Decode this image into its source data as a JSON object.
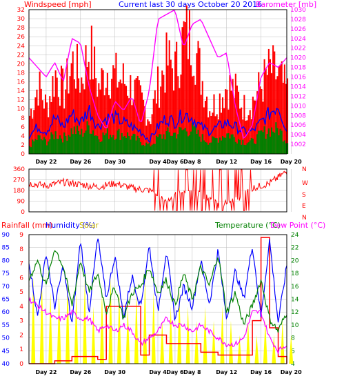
{
  "colors": {
    "wind": "#ff0000",
    "gust": "#ff0000",
    "avg": "#0000ff",
    "low": "#008000",
    "barometer": "#ff00ff",
    "direction": "#ff0000",
    "rain": "#ff0000",
    "humidity": "#0000ff",
    "solar": "#ffff00",
    "temperature": "#008000",
    "dewpoint": "#ff00ff",
    "grid": "#bbbbbb"
  },
  "header": {
    "left": "Windspeed [mph]",
    "center": "Current last 30 days October 20 2016",
    "right": "Barometer [mb]"
  },
  "direction_labels": [
    "N",
    "W",
    "S",
    "E",
    "N"
  ],
  "lower_header": {
    "rain": "Rainfall (mm)",
    "humidity": "Humidity (%)",
    "solar": "Solar",
    "temperature": "Temperature (°C)",
    "dewpoint": "Dew Point (°C)"
  },
  "x_ticks": [
    "Day 22",
    "Day 26",
    "Day 30",
    "Day 4",
    "Day 6",
    "Day 8",
    "Day 12",
    "Day 16",
    "Day 20"
  ],
  "chart_data": [
    {
      "type": "bar",
      "title": "Current last 30 days October 20 2016",
      "ylabel": "Windspeed [mph]",
      "y2label": "Barometer [mb]",
      "ylim": [
        0,
        32
      ],
      "y2lim": [
        1000,
        1030
      ],
      "yticks": [
        0,
        2,
        4,
        6,
        8,
        10,
        12,
        14,
        16,
        18,
        20,
        22,
        24,
        26,
        28,
        30,
        32
      ],
      "y2ticks": [
        1002,
        1004,
        1006,
        1008,
        1010,
        1012,
        1014,
        1016,
        1018,
        1020,
        1022,
        1024,
        1026,
        1028,
        1030
      ],
      "series": [
        {
          "name": "Windspeed gust",
          "x_day": [
            0,
            1,
            2,
            3,
            4,
            5,
            6,
            7,
            8,
            9,
            10,
            11,
            12,
            13,
            14,
            15,
            16,
            17,
            18,
            19,
            20,
            21,
            22,
            23,
            24,
            25,
            26,
            27,
            28,
            29,
            30
          ],
          "values": [
            10,
            18,
            12,
            21,
            16,
            24,
            19,
            28,
            17,
            22,
            20,
            19,
            17,
            14,
            9,
            18,
            24,
            22,
            31,
            30,
            20,
            12,
            14,
            18,
            16,
            12,
            14,
            18,
            22,
            20,
            16
          ]
        },
        {
          "name": "Windspeed average",
          "x_day": [
            0,
            1,
            2,
            3,
            4,
            5,
            6,
            7,
            8,
            9,
            10,
            11,
            12,
            13,
            14,
            15,
            16,
            17,
            18,
            19,
            20,
            21,
            22,
            23,
            24,
            25,
            26,
            27,
            28,
            29,
            30
          ],
          "values": [
            4,
            6,
            5,
            8,
            6,
            9,
            7,
            10,
            6,
            8,
            8,
            7,
            6,
            5,
            3,
            6,
            8,
            7,
            9,
            8,
            6,
            5,
            6,
            7,
            6,
            5,
            5,
            7,
            9,
            11,
            5
          ]
        },
        {
          "name": "Windspeed low",
          "x_day": [
            0,
            1,
            2,
            3,
            4,
            5,
            6,
            7,
            8,
            9,
            10,
            11,
            12,
            13,
            14,
            15,
            16,
            17,
            18,
            19,
            20,
            21,
            22,
            23,
            24,
            25,
            26,
            27,
            28,
            29,
            30
          ],
          "values": [
            2,
            4,
            3,
            5,
            4,
            6,
            5,
            7,
            4,
            5,
            5,
            5,
            4,
            3,
            2,
            4,
            5,
            5,
            6,
            6,
            4,
            3,
            4,
            5,
            4,
            3,
            3,
            5,
            6,
            6,
            3
          ]
        },
        {
          "name": "Barometer",
          "x_day": [
            0,
            1,
            2,
            3,
            4,
            5,
            6,
            7,
            8,
            9,
            10,
            11,
            12,
            13,
            14,
            15,
            16,
            17,
            18,
            19,
            20,
            21,
            22,
            23,
            24,
            25,
            26,
            27,
            28,
            29,
            30
          ],
          "values": [
            1020,
            1018,
            1016,
            1019,
            1015,
            1024,
            1023,
            1014,
            1008,
            1005,
            1011,
            1009,
            1012,
            1006,
            1013,
            1028,
            1029,
            1030,
            1022,
            1027,
            1028,
            1024,
            1020,
            1021,
            1010,
            1003,
            1006,
            1016,
            1019,
            1018,
            1020
          ]
        }
      ]
    },
    {
      "type": "line",
      "ylabel": "Direction",
      "ylim": [
        0,
        360
      ],
      "yticks": [
        0,
        90,
        180,
        270,
        360
      ],
      "series": [
        {
          "name": "Wind direction",
          "x_day": [
            0,
            2,
            4,
            6,
            8,
            10,
            12,
            14,
            16,
            18,
            20,
            22,
            24,
            26,
            28,
            30
          ],
          "values": [
            240,
            220,
            250,
            230,
            210,
            240,
            200,
            180,
            90,
            180,
            150,
            60,
            90,
            200,
            240,
            340
          ]
        }
      ]
    },
    {
      "type": "line",
      "ylabel": "Rainfall (mm)",
      "y_humidity_lim": [
        40,
        90
      ],
      "y_rain_lim": [
        0,
        9
      ],
      "y2label": "Temperature (°C)",
      "y2lim": [
        4,
        24
      ],
      "yticks_humidity": [
        40,
        45,
        50,
        55,
        60,
        65,
        70,
        75,
        80,
        85,
        90
      ],
      "yticks_rain": [
        0,
        1,
        2,
        3,
        4,
        5,
        6,
        7,
        8,
        9
      ],
      "y2ticks": [
        4,
        6,
        8,
        10,
        12,
        14,
        16,
        18,
        20,
        22,
        24
      ],
      "series": [
        {
          "name": "Humidity",
          "x_day": [
            0,
            1,
            2,
            3,
            4,
            5,
            6,
            7,
            8,
            9,
            10,
            11,
            12,
            13,
            14,
            15,
            16,
            17,
            18,
            19,
            20,
            21,
            22,
            23,
            24,
            25,
            26,
            27,
            28,
            29,
            30
          ],
          "values": [
            80,
            58,
            83,
            62,
            78,
            55,
            88,
            60,
            89,
            65,
            82,
            58,
            74,
            62,
            86,
            60,
            84,
            57,
            70,
            62,
            80,
            63,
            84,
            57,
            76,
            65,
            86,
            58,
            88,
            56,
            78
          ]
        },
        {
          "name": "Rainfall",
          "x_day": [
            0,
            3,
            5,
            8,
            9,
            13,
            14,
            16,
            20,
            22,
            26,
            27,
            28,
            29,
            30
          ],
          "values": [
            0,
            0.2,
            0.5,
            0.3,
            4.0,
            0.6,
            2.0,
            1.4,
            0.8,
            0.6,
            3.0,
            8.8,
            2.5,
            0.5,
            0
          ]
        },
        {
          "name": "Solar",
          "x_day": [
            0,
            1,
            2,
            3,
            4,
            5,
            6,
            7,
            8,
            9,
            10,
            11,
            12,
            13,
            14,
            15,
            16,
            17,
            18,
            19,
            20,
            21,
            22,
            23,
            24,
            25,
            26,
            27,
            28,
            29,
            30
          ],
          "values": [
            6,
            6,
            5,
            5,
            6,
            5,
            6,
            4,
            5,
            6,
            5,
            4,
            5,
            6,
            5,
            3,
            4,
            5,
            4,
            3,
            4,
            3,
            4,
            3,
            2,
            3,
            2,
            3,
            2,
            3,
            2
          ]
        },
        {
          "name": "Temperature",
          "x_day": [
            0,
            1,
            2,
            3,
            4,
            5,
            6,
            7,
            8,
            9,
            10,
            11,
            12,
            13,
            14,
            15,
            16,
            17,
            18,
            19,
            20,
            21,
            22,
            23,
            24,
            25,
            26,
            27,
            28,
            29,
            30
          ],
          "values": [
            17,
            20,
            16,
            22,
            19,
            13,
            20,
            15,
            18,
            12,
            16,
            11,
            15,
            16,
            19,
            15,
            17,
            13,
            18,
            14,
            19,
            16,
            21,
            12,
            15,
            10,
            13,
            17,
            11,
            9,
            12
          ]
        },
        {
          "name": "Dew Point",
          "x_day": [
            0,
            1,
            2,
            3,
            4,
            5,
            6,
            7,
            8,
            9,
            10,
            11,
            12,
            13,
            14,
            15,
            16,
            17,
            18,
            19,
            20,
            21,
            22,
            23,
            24,
            25,
            26,
            27,
            28,
            29,
            30
          ],
          "values": [
            14,
            13,
            12,
            11,
            11,
            12,
            11,
            11,
            9,
            10,
            9,
            10,
            9,
            7,
            8,
            9,
            11,
            10,
            10,
            9,
            10,
            9,
            8,
            7,
            7,
            8,
            12,
            12,
            8,
            6,
            7
          ]
        }
      ]
    }
  ]
}
